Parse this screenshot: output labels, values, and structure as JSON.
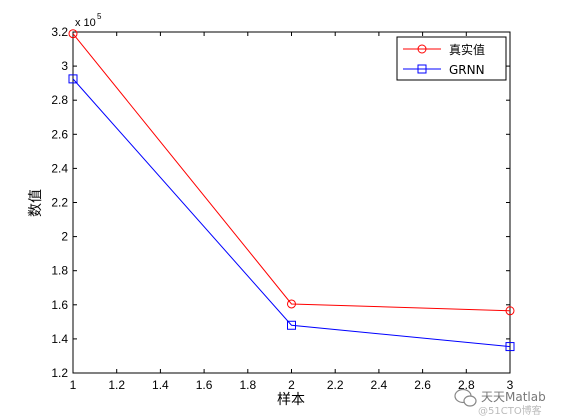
{
  "chart_data": {
    "type": "line",
    "x": [
      1,
      2,
      3
    ],
    "series": [
      {
        "name": "真实值",
        "values": [
          3.19,
          1.605,
          1.565
        ],
        "color": "#ff0000",
        "marker": "circle"
      },
      {
        "name": "GRNN",
        "values": [
          2.925,
          1.48,
          1.355
        ],
        "color": "#0000ff",
        "marker": "square"
      }
    ],
    "xlabel": "样本",
    "ylabel": "数值",
    "xlim": [
      1,
      3
    ],
    "ylim": [
      1.2,
      3.2
    ],
    "xticks": [
      "1",
      "1.2",
      "1.4",
      "1.6",
      "1.8",
      "2",
      "2.2",
      "2.4",
      "2.6",
      "2.8",
      "3"
    ],
    "yticks": [
      "1.2",
      "1.4",
      "1.6",
      "1.8",
      "2",
      "2.2",
      "2.4",
      "2.6",
      "2.8",
      "3",
      "3.2"
    ],
    "y_exponent_label": "x 10",
    "y_exponent_power": "5",
    "grid": false,
    "legend_position": "top-right"
  },
  "watermark": {
    "text": "天天Matlab",
    "subtext": "@51CTO博客",
    "icon": "wechat-icon"
  }
}
